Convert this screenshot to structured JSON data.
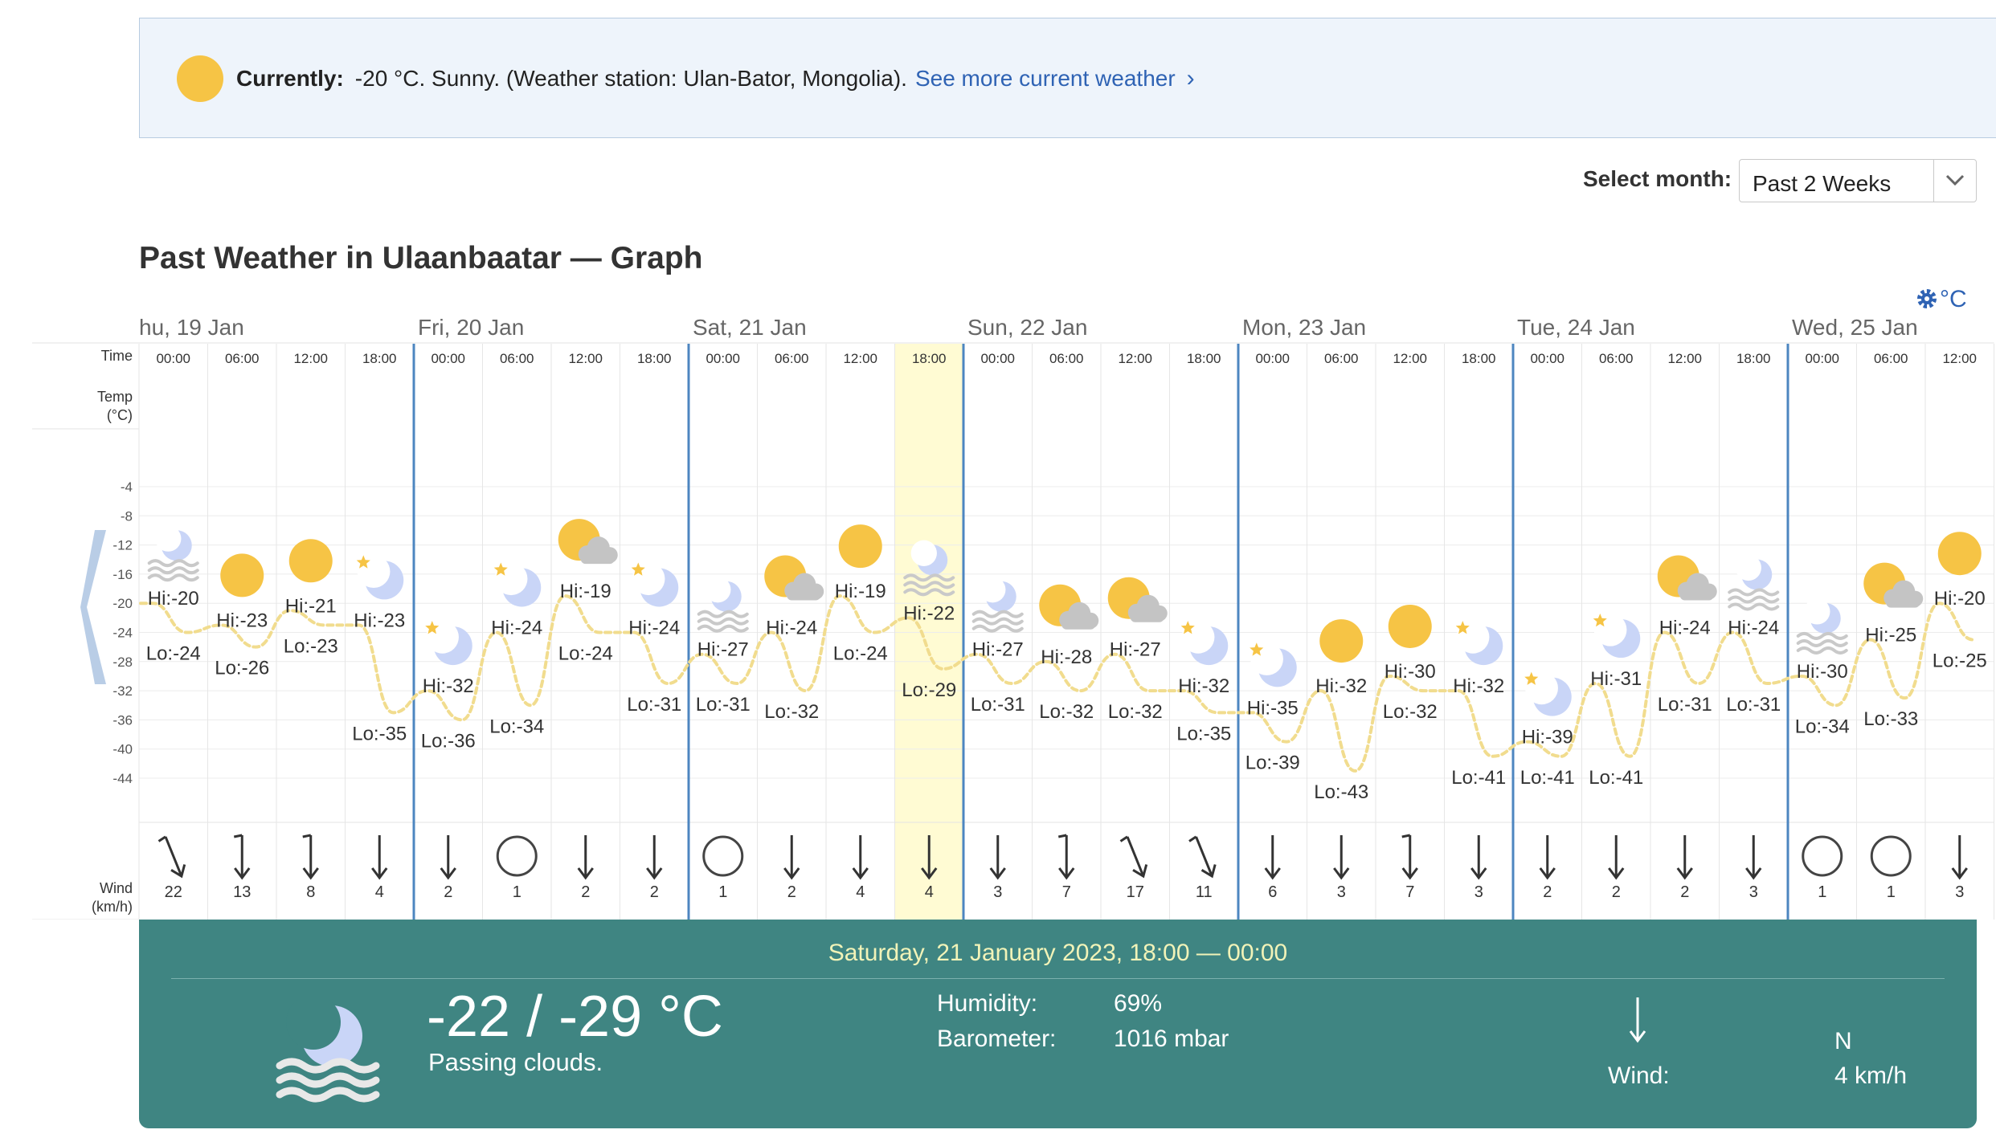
{
  "banner": {
    "label": "Currently:",
    "text": "-20 °C. Sunny. (Weather station: Ulan-Bator, Mongolia).",
    "link": "See more current weather",
    "chevron": "›",
    "icon": "sun-icon"
  },
  "month_select": {
    "label": "Select month:",
    "value": "Past 2 Weeks"
  },
  "graph_title": "Past Weather in Ulaanbaatar — Graph",
  "unit_toggle": "°C",
  "row_labels": {
    "time": "Time",
    "temp1": "Temp",
    "temp2": "(°C)",
    "wind1": "Wind",
    "wind2": "(km/h)"
  },
  "axis_ticks": [
    "-4",
    "-8",
    "-12",
    "-16",
    "-20",
    "-24",
    "-28",
    "-32",
    "-36",
    "-40",
    "-44"
  ],
  "days": [
    "hu, 19 Jan",
    "Fri, 20 Jan",
    "Sat, 21 Jan",
    "Sun, 22 Jan",
    "Mon, 23 Jan",
    "Tue, 24 Jan",
    "Wed, 25 Jan"
  ],
  "selected_slot": 11,
  "slots": [
    {
      "time": "00:00",
      "hi": "-20",
      "lo": "-24",
      "hi_t": -20,
      "lo_t": -24,
      "icon": "moon-fog-icon",
      "wind": "22",
      "dir": "nw"
    },
    {
      "time": "06:00",
      "hi": "-23",
      "lo": "-26",
      "hi_t": -23,
      "lo_t": -26,
      "icon": "sun-icon",
      "wind": "13",
      "dir": "n"
    },
    {
      "time": "12:00",
      "hi": "-21",
      "lo": "-23",
      "hi_t": -21,
      "lo_t": -23,
      "icon": "sun-icon",
      "wind": "8",
      "dir": "n"
    },
    {
      "time": "18:00",
      "hi": "-23",
      "lo": "-35",
      "hi_t": -23,
      "lo_t": -35,
      "icon": "moon-icon",
      "wind": "4",
      "dir": "n"
    },
    {
      "time": "00:00",
      "hi": "-32",
      "lo": "-36",
      "hi_t": -32,
      "lo_t": -36,
      "icon": "moon-icon",
      "wind": "2",
      "dir": "n"
    },
    {
      "time": "06:00",
      "hi": "-24",
      "lo": "-34",
      "hi_t": -24,
      "lo_t": -34,
      "icon": "moon-icon",
      "wind": "1",
      "dir": "calm"
    },
    {
      "time": "12:00",
      "hi": "-19",
      "lo": "-24",
      "hi_t": -19,
      "lo_t": -24,
      "icon": "sun-cloud-icon",
      "wind": "2",
      "dir": "n"
    },
    {
      "time": "18:00",
      "hi": "-24",
      "lo": "-31",
      "hi_t": -24,
      "lo_t": -31,
      "icon": "moon-icon",
      "wind": "2",
      "dir": "n"
    },
    {
      "time": "00:00",
      "hi": "-27",
      "lo": "-31",
      "hi_t": -27,
      "lo_t": -31,
      "icon": "moon-fog-icon",
      "wind": "1",
      "dir": "calm"
    },
    {
      "time": "06:00",
      "hi": "-24",
      "lo": "-32",
      "hi_t": -24,
      "lo_t": -32,
      "icon": "sun-cloud-icon",
      "wind": "2",
      "dir": "n"
    },
    {
      "time": "12:00",
      "hi": "-19",
      "lo": "-24",
      "hi_t": -19,
      "lo_t": -24,
      "icon": "sun-icon",
      "wind": "4",
      "dir": "n"
    },
    {
      "time": "18:00",
      "hi": "-22",
      "lo": "-29",
      "hi_t": -22,
      "lo_t": -29,
      "icon": "moon-fog-icon",
      "wind": "4",
      "dir": "n"
    },
    {
      "time": "00:00",
      "hi": "-27",
      "lo": "-31",
      "hi_t": -27,
      "lo_t": -31,
      "icon": "moon-fog-icon",
      "wind": "3",
      "dir": "n"
    },
    {
      "time": "06:00",
      "hi": "-28",
      "lo": "-32",
      "hi_t": -28,
      "lo_t": -32,
      "icon": "sun-cloud-icon",
      "wind": "7",
      "dir": "n"
    },
    {
      "time": "12:00",
      "hi": "-27",
      "lo": "-32",
      "hi_t": -27,
      "lo_t": -32,
      "icon": "sun-cloud-icon",
      "wind": "17",
      "dir": "nw"
    },
    {
      "time": "18:00",
      "hi": "-32",
      "lo": "-35",
      "hi_t": -32,
      "lo_t": -35,
      "icon": "moon-icon",
      "wind": "11",
      "dir": "nw"
    },
    {
      "time": "00:00",
      "hi": "-35",
      "lo": "-39",
      "hi_t": -35,
      "lo_t": -39,
      "icon": "moon-icon",
      "wind": "6",
      "dir": "n"
    },
    {
      "time": "06:00",
      "hi": "-32",
      "lo": "-43",
      "hi_t": -32,
      "lo_t": -43,
      "icon": "sun-icon",
      "wind": "3",
      "dir": "n"
    },
    {
      "time": "12:00",
      "hi": "-30",
      "lo": "-32",
      "hi_t": -30,
      "lo_t": -32,
      "icon": "sun-icon",
      "wind": "7",
      "dir": "n"
    },
    {
      "time": "18:00",
      "hi": "-32",
      "lo": "-41",
      "hi_t": -32,
      "lo_t": -41,
      "icon": "moon-icon",
      "wind": "3",
      "dir": "n"
    },
    {
      "time": "00:00",
      "hi": "-39",
      "lo": "-41",
      "hi_t": -39,
      "lo_t": -41,
      "icon": "moon-icon",
      "wind": "2",
      "dir": "n"
    },
    {
      "time": "06:00",
      "hi": "-31",
      "lo": "-41",
      "hi_t": -31,
      "lo_t": -41,
      "icon": "moon-icon",
      "wind": "2",
      "dir": "n"
    },
    {
      "time": "12:00",
      "hi": "-24",
      "lo": "-31",
      "hi_t": -24,
      "lo_t": -31,
      "icon": "sun-cloud-icon",
      "wind": "2",
      "dir": "n"
    },
    {
      "time": "18:00",
      "hi": "-24",
      "lo": "-31",
      "hi_t": -24,
      "lo_t": -31,
      "icon": "moon-fog-icon",
      "wind": "3",
      "dir": "n"
    },
    {
      "time": "00:00",
      "hi": "-30",
      "lo": "-34",
      "hi_t": -30,
      "lo_t": -34,
      "icon": "moon-fog-icon",
      "wind": "1",
      "dir": "calm"
    },
    {
      "time": "06:00",
      "hi": "-25",
      "lo": "-33",
      "hi_t": -25,
      "lo_t": -33,
      "icon": "sun-cloud-icon",
      "wind": "1",
      "dir": "calm"
    },
    {
      "time": "12:00",
      "hi": "-20",
      "lo": "-25",
      "hi_t": -20,
      "lo_t": -25,
      "icon": "sun-icon",
      "wind": "3",
      "dir": "n"
    }
  ],
  "details": {
    "date": "Saturday, 21 January 2023, 18:00 — 00:00",
    "temp": "-22 / -29 °C",
    "desc": "Passing clouds.",
    "humidity_label": "Humidity:",
    "humidity": "69%",
    "barometer_label": "Barometer:",
    "barometer": "1016 mbar",
    "wind_dir": "N",
    "wind_label": "Wind:",
    "wind": "4 km/h",
    "icon": "moon-fog-icon",
    "arrow": "down-arrow-icon"
  },
  "colors": {
    "accent": "#2f63b4",
    "sun": "#f6c445",
    "moon": "#c9d5f7",
    "curve": "#f1dc8e",
    "selected": "#fffbd3",
    "details_bg": "#3f8582"
  }
}
